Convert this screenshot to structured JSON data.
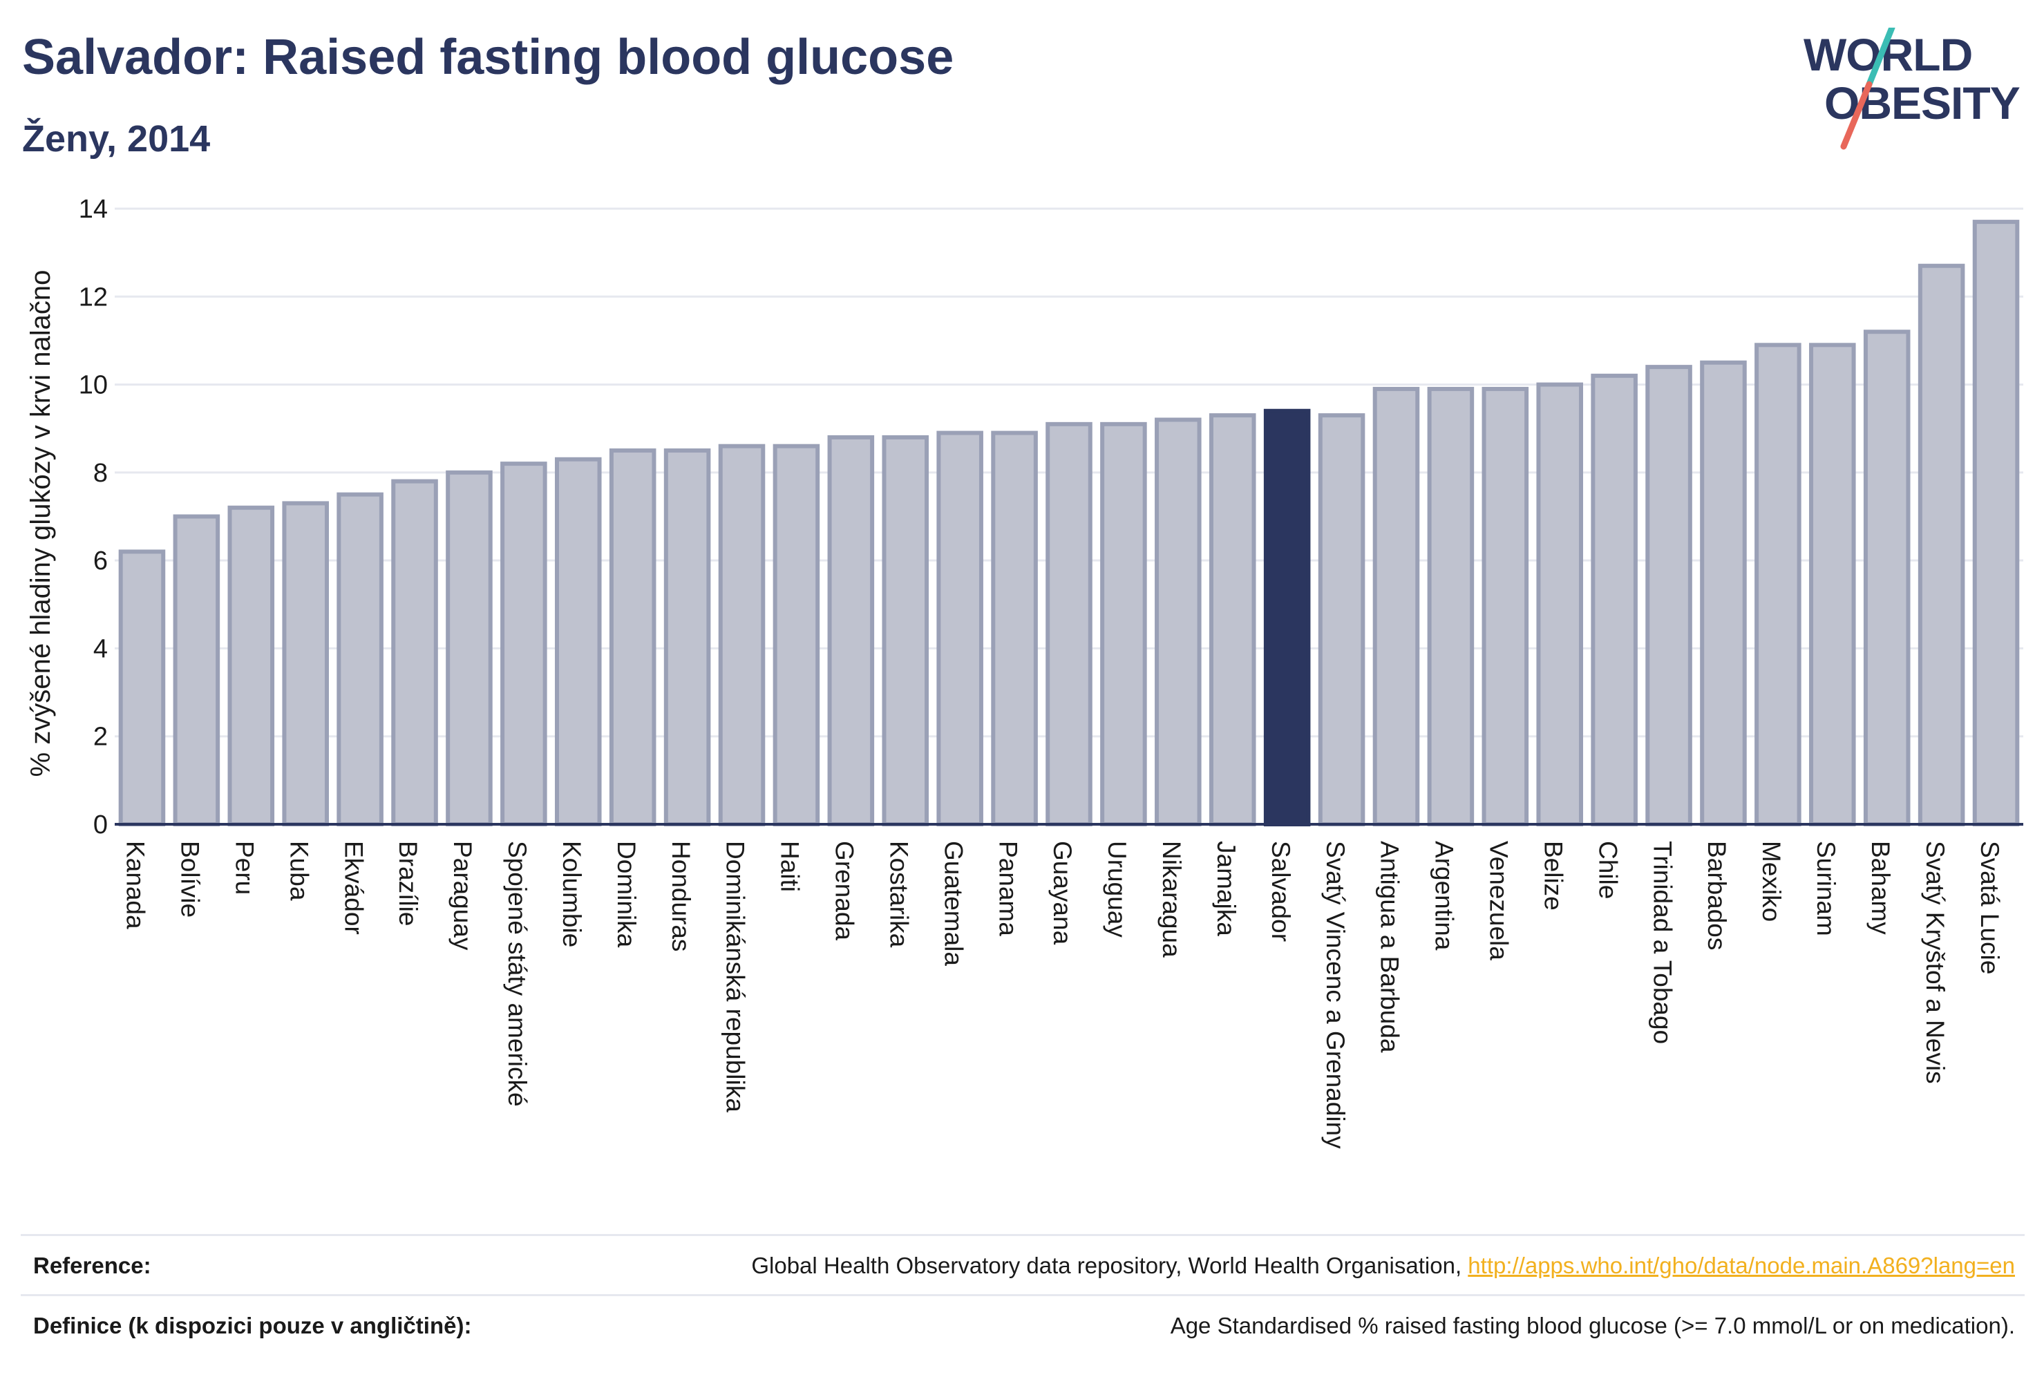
{
  "title": "Salvador: Raised fasting blood glucose",
  "subtitle": "Ženy, 2014",
  "logo": {
    "line1": "WORLD",
    "line2": "OBESITY",
    "accent_teal": "#3bbdb4",
    "accent_red": "#e8675a"
  },
  "colors": {
    "bar": "#bfc2cf",
    "bar_border": "#9aa0b6",
    "highlight": "#2b365f",
    "axis": "#2b365f",
    "grid": "#e6e8ef"
  },
  "chart_data": {
    "type": "bar",
    "ylabel": "% zvýšené hladiny glukózy v krvi nalačno",
    "xlabel": "",
    "ylim": [
      0,
      14
    ],
    "yticks": [
      0,
      2,
      4,
      6,
      8,
      10,
      12,
      14
    ],
    "grid": true,
    "highlight": "Salvador",
    "categories": [
      "Kanada",
      "Bolívie",
      "Peru",
      "Kuba",
      "Ekvádor",
      "Brazílie",
      "Paraguay",
      "Spojené státy americké",
      "Kolumbie",
      "Dominika",
      "Honduras",
      "Dominikánská republika",
      "Haiti",
      "Grenada",
      "Kostarika",
      "Guatemala",
      "Panama",
      "Guayana",
      "Uruguay",
      "Nikaragua",
      "Jamajka",
      "Salvador",
      "Svatý Vincenc a Grenadiny",
      "Antigua a Barbuda",
      "Argentina",
      "Venezuela",
      "Belize",
      "Chile",
      "Trinidad a Tobago",
      "Barbados",
      "Mexiko",
      "Surinam",
      "Bahamy",
      "Svatý Kryštof a Nevis",
      "Svatá Lucie"
    ],
    "values": [
      6.2,
      7.0,
      7.2,
      7.3,
      7.5,
      7.8,
      8.0,
      8.2,
      8.3,
      8.5,
      8.5,
      8.6,
      8.6,
      8.8,
      8.8,
      8.9,
      8.9,
      9.1,
      9.1,
      9.2,
      9.3,
      9.4,
      9.3,
      9.9,
      9.9,
      9.9,
      10.0,
      10.2,
      10.4,
      10.5,
      10.9,
      10.9,
      11.2,
      12.7,
      13.7
    ]
  },
  "footer": {
    "reference_label": "Reference:",
    "reference_text": "Global Health Observatory data repository, World Health Organisation, ",
    "reference_link": "http://apps.who.int/gho/data/node.main.A869?lang=en",
    "definition_label": "Definice (k dispozici pouze v angličtině):",
    "definition_text": "Age Standardised % raised fasting blood glucose (>= 7.0 mmol/L or on medication)."
  }
}
